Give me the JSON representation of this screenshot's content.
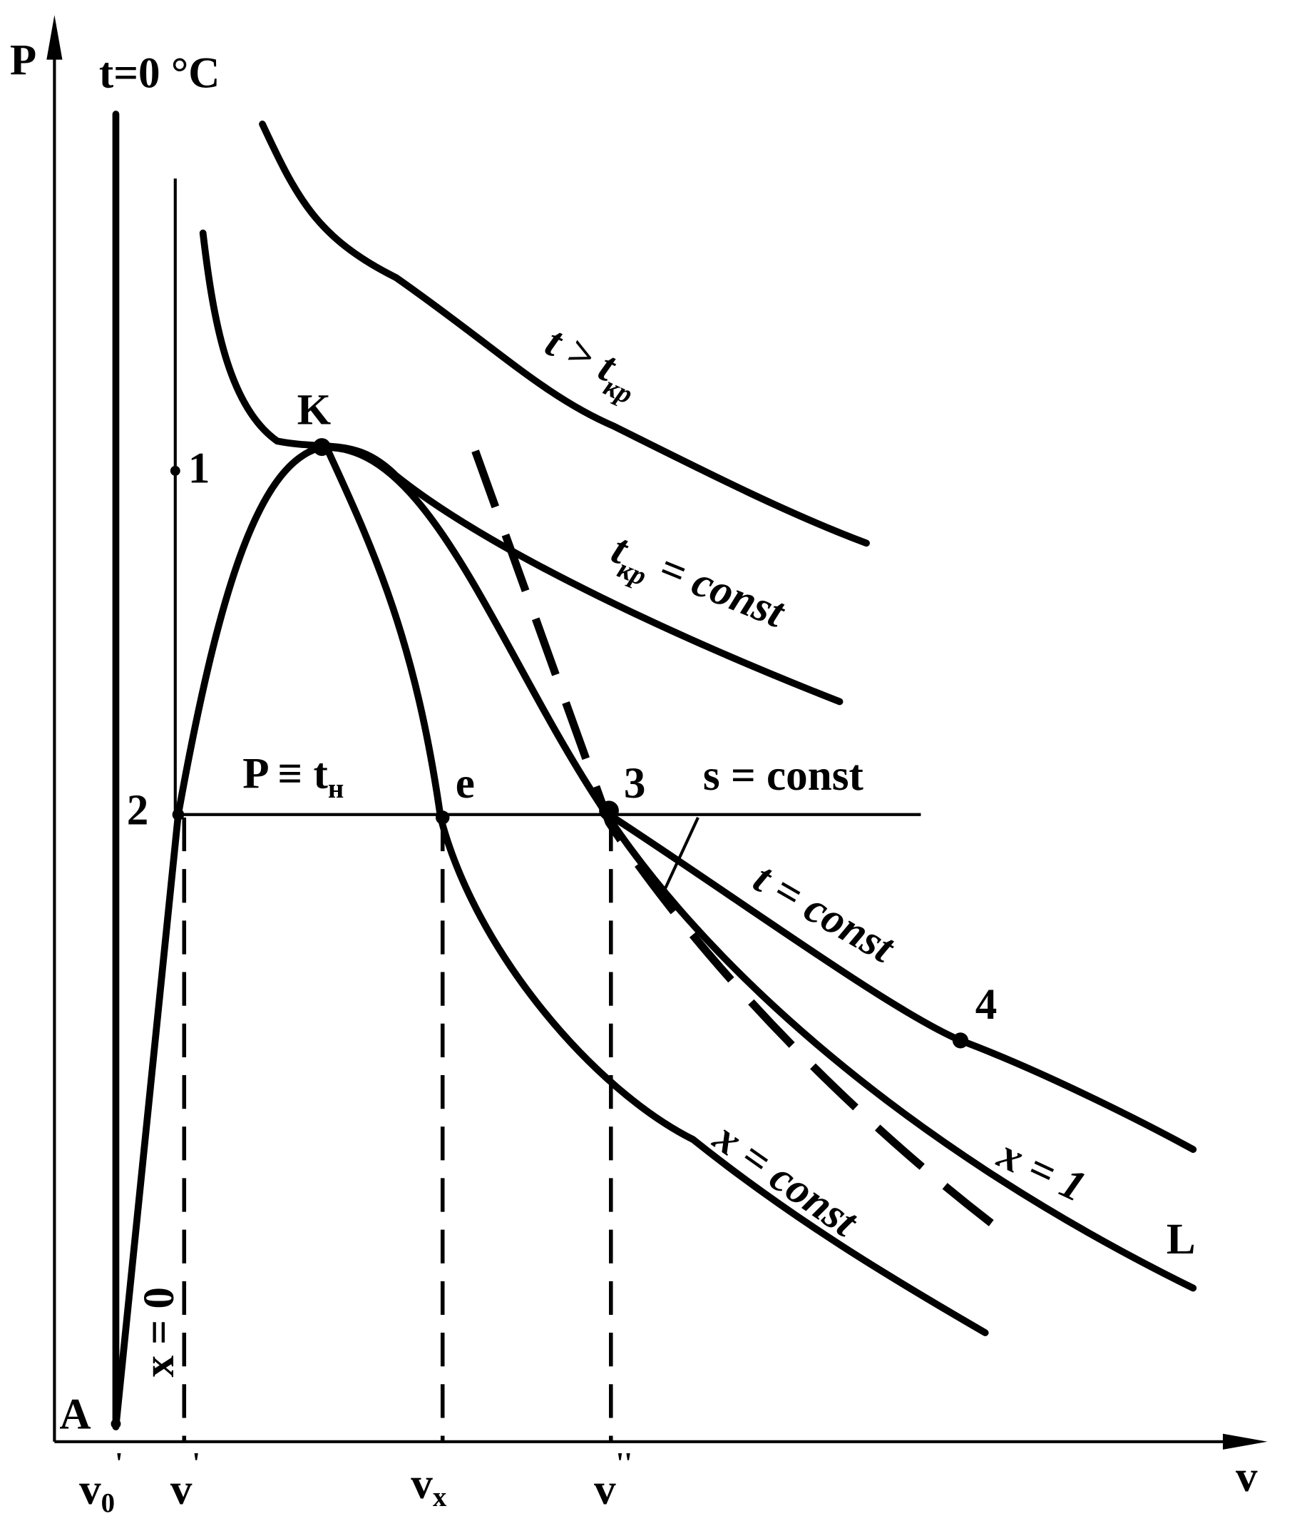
{
  "labels": {
    "p_axis": "P",
    "v_axis": "v",
    "t0": "t=0 °C",
    "k": "K",
    "p1": "1",
    "p2": "2",
    "p3": "3",
    "p4": "4",
    "e": "e",
    "a": "A",
    "l": "L",
    "x0": "x = 0",
    "s_const": "s = const",
    "t_const": "t = const",
    "x_const": "x = const",
    "x1": "x = 1",
    "t_gt": {
      "main": "t > t",
      "sub": "кр"
    },
    "t_cr": {
      "main": "t",
      "sub": "кр",
      "rest": " = const"
    },
    "p_tn": {
      "main": "P ≡ t",
      "sub": "н"
    },
    "v0": {
      "main": "v",
      "sub": "0",
      "sup": "'"
    },
    "v1": {
      "main": "v",
      "sup": "'"
    },
    "vx": {
      "main": "v",
      "sub": "x"
    },
    "v2": {
      "main": "v",
      "sup": "''"
    }
  }
}
